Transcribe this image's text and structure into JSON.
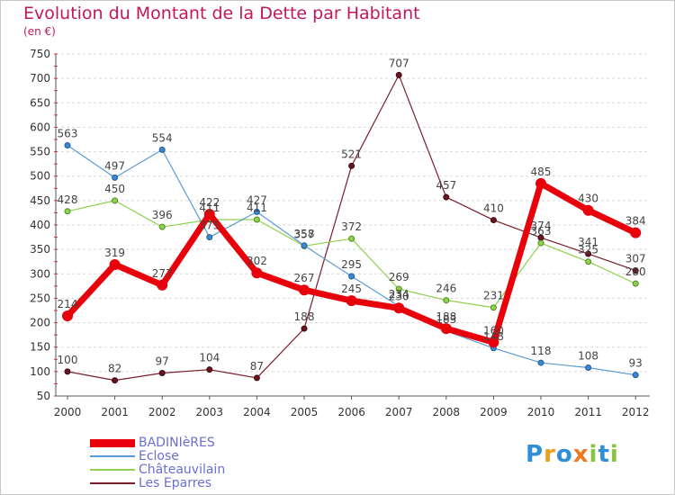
{
  "title": "Evolution du Montant de la Dette par Habitant",
  "subtitle": "(en €)",
  "brand": [
    "P",
    "r",
    "o",
    "x",
    "i",
    "t",
    "i"
  ],
  "chart_data": {
    "type": "line",
    "title": "Evolution du Montant de la Dette par Habitant",
    "ylabel": "(en €)",
    "ylim": [
      50,
      750
    ],
    "yticks": [
      50,
      100,
      150,
      200,
      250,
      300,
      350,
      400,
      450,
      500,
      550,
      600,
      650,
      700,
      750
    ],
    "grid": "dashed horizontal",
    "legend_position": "bottom-left",
    "categories": [
      "2000",
      "2001",
      "2002",
      "2003",
      "2004",
      "2005",
      "2006",
      "2007",
      "2008",
      "2009",
      "2010",
      "2011",
      "2012"
    ],
    "series": [
      {
        "name": "BADINIèRES",
        "color": "#e8000b",
        "values": [
          214,
          319,
          277,
          422,
          302,
          267,
          245,
          230,
          188,
          160,
          485,
          430,
          384
        ]
      },
      {
        "name": "Eclose",
        "color": "#5b9bd5",
        "values": [
          563,
          497,
          554,
          375,
          427,
          358,
          295,
          234,
          183,
          148,
          118,
          108,
          93
        ]
      },
      {
        "name": "Châteauvilain",
        "color": "#92d050",
        "values": [
          428,
          450,
          396,
          411,
          411,
          357,
          372,
          269,
          246,
          231,
          363,
          325,
          280
        ]
      },
      {
        "name": "Les Eparres",
        "color": "#7a1f2b",
        "values": [
          100,
          82,
          97,
          104,
          87,
          188,
          521,
          707,
          457,
          410,
          374,
          341,
          307
        ]
      }
    ]
  }
}
